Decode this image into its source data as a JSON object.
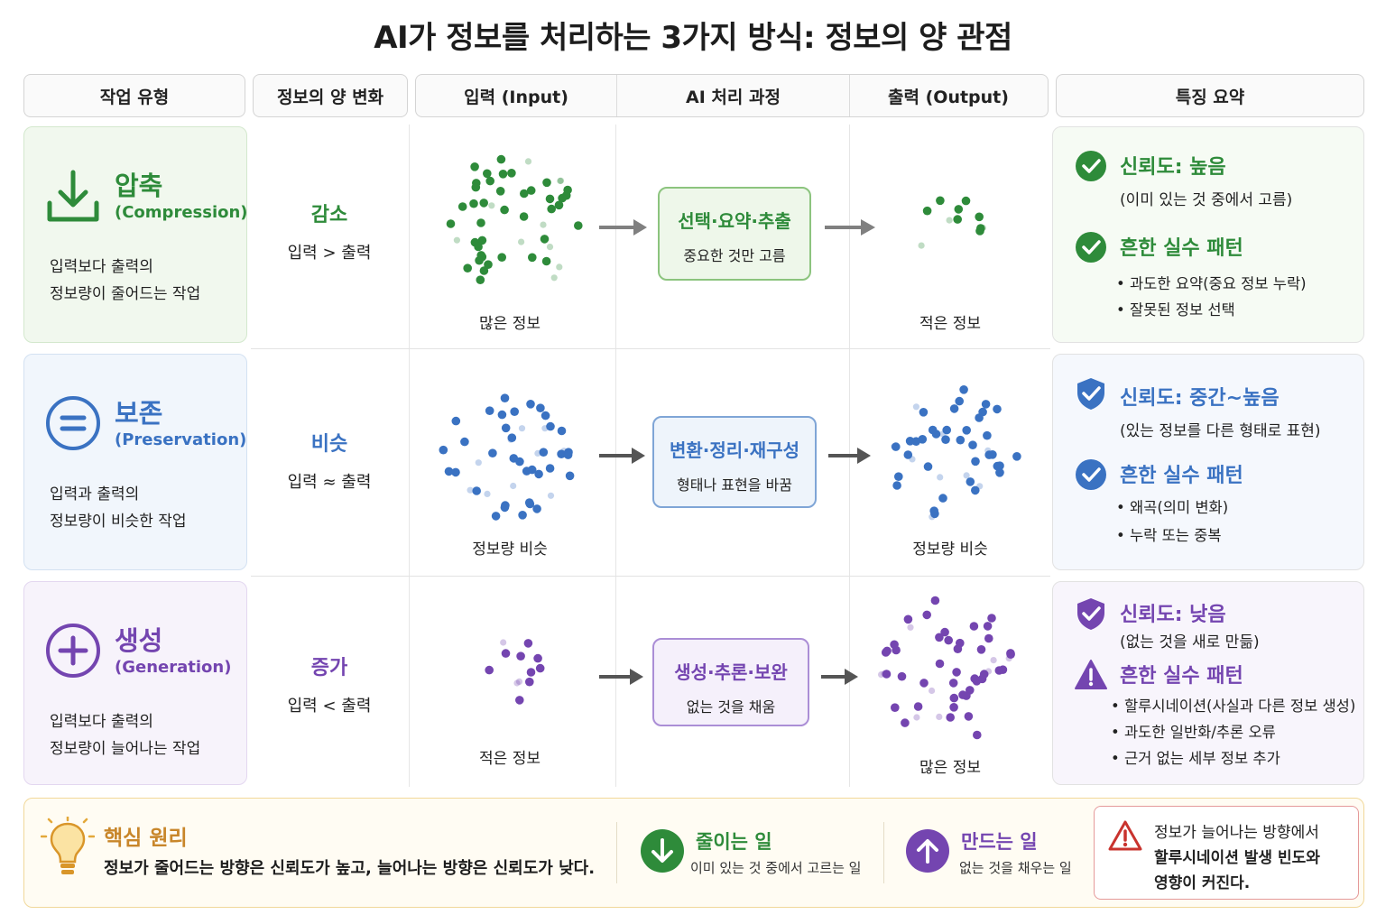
{
  "title": "AI가 정보를 처리하는 3가지 방식: 정보의 양 관점",
  "headers": {
    "type": "작업 유형",
    "change": "정보의 양 변화",
    "input": "입력 (Input)",
    "process": "AI 처리 과정",
    "output": "출력 (Output)",
    "summary": "특징 요약"
  },
  "rows": [
    {
      "name": "압축",
      "sub": "(Compression)",
      "desc1": "입력보다 출력의",
      "desc2": "정보량이 줄어드는 작업",
      "icon": "download-arrow-icon",
      "color": "#2e8b3a",
      "change_label": "감소",
      "change_relation": "입력 > 출력",
      "input_label": "많은 정보",
      "process_title": "선택·요약·추출",
      "process_desc": "중요한 것만 고름",
      "output_label": "적은 정보",
      "summary": {
        "reliability": "신뢰도: 높음",
        "reliability_note": "(이미 있는 것 중에서 고름)",
        "mistakes": "흔한 실수 패턴",
        "bullets": [
          "• 과도한 요약(중요 정보 누락)",
          "• 잘못된 정보 선택"
        ]
      }
    },
    {
      "name": "보존",
      "sub": "(Preservation)",
      "desc1": "입력과 출력의",
      "desc2": "정보량이 비슷한 작업",
      "icon": "equals-circle-icon",
      "color": "#3a72c2",
      "change_label": "비슷",
      "change_relation": "입력 ≈ 출력",
      "input_label": "정보량 비슷",
      "process_title": "변환·정리·재구성",
      "process_desc": "형태나 표현을 바꿈",
      "output_label": "정보량 비슷",
      "summary": {
        "reliability": "신뢰도: 중간~높음",
        "reliability_note": "(있는 정보를 다른 형태로 표현)",
        "mistakes": "흔한 실수 패턴",
        "bullets": [
          "• 왜곡(의미 변화)",
          "• 누락 또는 중복"
        ]
      }
    },
    {
      "name": "생성",
      "sub": "(Generation)",
      "desc1": "입력보다 출력의",
      "desc2": "정보량이 늘어나는 작업",
      "icon": "plus-circle-icon",
      "color": "#7445b0",
      "change_label": "증가",
      "change_relation": "입력 < 출력",
      "input_label": "적은 정보",
      "process_title": "생성·추론·보완",
      "process_desc": "없는 것을 채움",
      "output_label": "많은 정보",
      "summary": {
        "reliability": "신뢰도: 낮음",
        "reliability_note": "(없는 것을 새로 만듦)",
        "mistakes": "흔한 실수 패턴",
        "bullets": [
          "• 할루시네이션(사실과 다른 정보 생성)",
          "• 과도한 일반화/추론 오류",
          "• 근거 없는 세부 정보 추가"
        ]
      }
    }
  ],
  "bottom": {
    "key_title": "핵심 원리",
    "key_text": "정보가 줄어드는 방향은 신뢰도가 높고, 늘어나는 방향은 신뢰도가 낮다.",
    "reduce_title": "줄이는 일",
    "reduce_desc": "이미 있는 것 중에서 고르는 일",
    "make_title": "만드는 일",
    "make_desc": "없는 것을 채우는 일",
    "warning_lines": [
      "정보가 늘어나는 방향에서",
      "할루시네이션 발생 빈도와",
      "영향이 커진다."
    ]
  }
}
